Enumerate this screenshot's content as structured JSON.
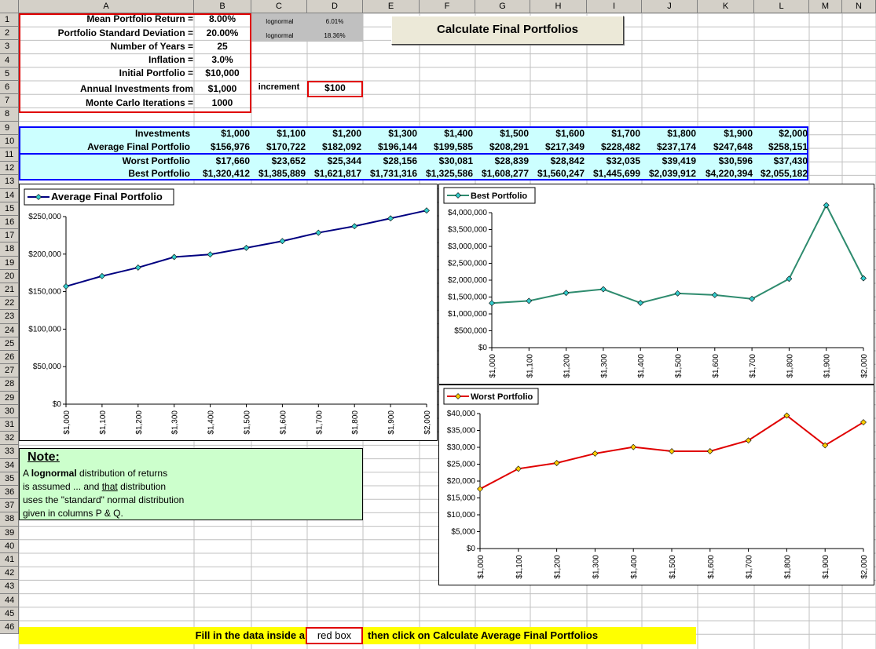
{
  "columns": [
    "A",
    "B",
    "C",
    "D",
    "E",
    "F",
    "G",
    "H",
    "I",
    "J",
    "K",
    "L",
    "M",
    "N"
  ],
  "rows": [
    "1",
    "2",
    "3",
    "4",
    "5",
    "6",
    "7",
    "8",
    "9",
    "10",
    "11",
    "12",
    "13",
    "14",
    "15",
    "16",
    "17",
    "18",
    "19",
    "20",
    "21",
    "22",
    "23",
    "24",
    "25",
    "26",
    "27",
    "28",
    "29",
    "30",
    "31",
    "32",
    "33",
    "34",
    "35",
    "36",
    "37",
    "38",
    "39",
    "40",
    "41",
    "42",
    "43",
    "44",
    "45",
    "46"
  ],
  "inputs": {
    "mean_label": "Mean Portfolio Return =",
    "mean_value": "8.00%",
    "std_label": "Portfolio Standard Deviation =",
    "std_value": "20.00%",
    "years_label": "Number of Years =",
    "years_value": "25",
    "inflation_label": "Inflation =",
    "inflation_value": "3.0%",
    "initial_label": "Initial Portfolio =",
    "initial_value": "$10,000",
    "annual_label": "Annual Investments from",
    "annual_value": "$1,000",
    "increment_label": "increment",
    "increment_value": "$100",
    "mc_label": "Monte Carlo Iterations =",
    "mc_value": "1000",
    "lognormal_label_1": "lognormal",
    "lognormal_value_1": "6.01%",
    "lognormal_label_2": "lognormal",
    "lognormal_value_2": "18.36%"
  },
  "button": {
    "label": "Calculate Final Portfolios"
  },
  "table": {
    "investments_label": "Investments",
    "average_label": "Average Final Portfolio",
    "worst_label": "Worst Portfolio",
    "best_label": "Best Portfolio",
    "investments": [
      "$1,000",
      "$1,100",
      "$1,200",
      "$1,300",
      "$1,400",
      "$1,500",
      "$1,600",
      "$1,700",
      "$1,800",
      "$1,900",
      "$2,000"
    ],
    "average": [
      "$156,976",
      "$170,722",
      "$182,092",
      "$196,144",
      "$199,585",
      "$208,291",
      "$217,349",
      "$228,482",
      "$237,174",
      "$247,648",
      "$258,151"
    ],
    "worst": [
      "$17,660",
      "$23,652",
      "$25,344",
      "$28,156",
      "$30,081",
      "$28,839",
      "$28,842",
      "$32,035",
      "$39,419",
      "$30,596",
      "$37,430"
    ],
    "best": [
      "$1,320,412",
      "$1,385,889",
      "$1,621,817",
      "$1,731,316",
      "$1,325,586",
      "$1,608,277",
      "$1,560,247",
      "$1,445,699",
      "$2,039,912",
      "$4,220,394",
      "$2,055,182"
    ]
  },
  "note": {
    "title": "Note:",
    "line1_pre": "A ",
    "line1_bold": "lognormal",
    "line1_post": " distribution of returns",
    "line2_pre": "is assumed ... and ",
    "line2_under": "that",
    "line2_post": " distribution",
    "line3": "uses the \"standard\" normal distribution",
    "line4": "given in columns P & Q."
  },
  "footer": {
    "pre": "Fill in the data inside a",
    "box": "red box",
    "post_pre": "then click on ",
    "post_bold": "Calculate Average Final Portfolios"
  },
  "colors": {
    "avg_line": "#000080",
    "best_line": "#2e8b6e",
    "worst_line": "#e00000",
    "table_fill": "#ccffff",
    "table_border": "#0000ff",
    "footer_fill": "#ffff00",
    "note_fill": "#ccffcc"
  },
  "chart_data": [
    {
      "type": "line",
      "legend": "Average Final Portfolio",
      "categories": [
        "$1,000",
        "$1,100",
        "$1,200",
        "$1,300",
        "$1,400",
        "$1,500",
        "$1,600",
        "$1,700",
        "$1,800",
        "$1,900",
        "$2,000"
      ],
      "series": [
        {
          "name": "Average Final Portfolio",
          "values": [
            156976,
            170722,
            182092,
            196144,
            199585,
            208291,
            217349,
            228482,
            237174,
            247648,
            258151
          ]
        }
      ],
      "ylim": [
        0,
        250000
      ],
      "yticks": [
        "$0",
        "$50,000",
        "$100,000",
        "$150,000",
        "$200,000",
        "$250,000"
      ],
      "ytick_values": [
        0,
        50000,
        100000,
        150000,
        200000,
        250000
      ]
    },
    {
      "type": "line",
      "legend": "Best Portfolio",
      "categories": [
        "$1,000",
        "$1,100",
        "$1,200",
        "$1,300",
        "$1,400",
        "$1,500",
        "$1,600",
        "$1,700",
        "$1,800",
        "$1,900",
        "$2,000"
      ],
      "series": [
        {
          "name": "Best Portfolio",
          "values": [
            1320412,
            1385889,
            1621817,
            1731316,
            1325586,
            1608277,
            1560247,
            1445699,
            2039912,
            4220394,
            2055182
          ]
        }
      ],
      "ylim": [
        0,
        4000000
      ],
      "yticks": [
        "$0",
        "$500,000",
        "$1,000,000",
        "$1,500,000",
        "$2,000,000",
        "$2,500,000",
        "$3,000,000",
        "$3,500,000",
        "$4,000,000"
      ],
      "ytick_values": [
        0,
        500000,
        1000000,
        1500000,
        2000000,
        2500000,
        3000000,
        3500000,
        4000000
      ]
    },
    {
      "type": "line",
      "legend": "Worst Portfolio",
      "categories": [
        "$1,000",
        "$1,100",
        "$1,200",
        "$1,300",
        "$1,400",
        "$1,500",
        "$1,600",
        "$1,700",
        "$1,800",
        "$1,900",
        "$2,000"
      ],
      "series": [
        {
          "name": "Worst Portfolio",
          "values": [
            17660,
            23652,
            25344,
            28156,
            30081,
            28839,
            28842,
            32035,
            39419,
            30596,
            37430
          ]
        }
      ],
      "ylim": [
        0,
        40000
      ],
      "yticks": [
        "$0",
        "$5,000",
        "$10,000",
        "$15,000",
        "$20,000",
        "$25,000",
        "$30,000",
        "$35,000",
        "$40,000"
      ],
      "ytick_values": [
        0,
        5000,
        10000,
        15000,
        20000,
        25000,
        30000,
        35000,
        40000
      ]
    }
  ]
}
